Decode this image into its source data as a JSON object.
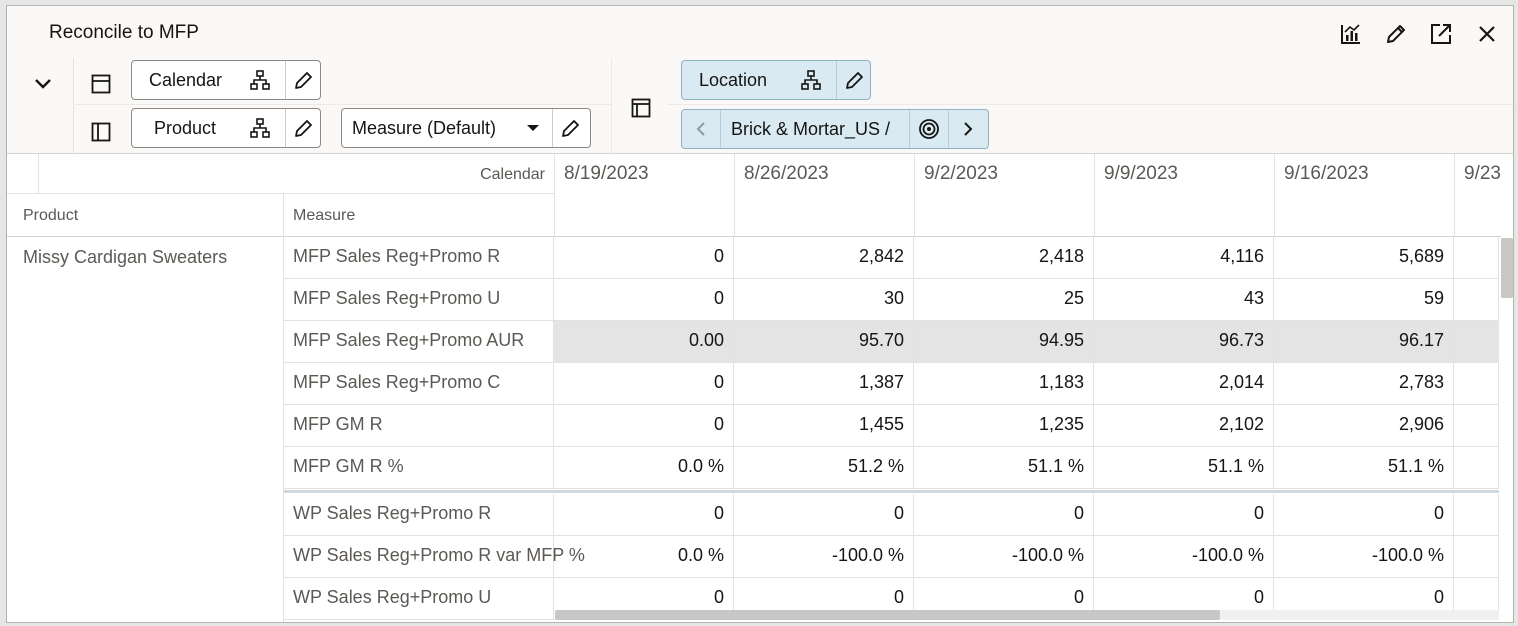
{
  "window": {
    "title": "Reconcile to MFP",
    "icons": [
      "chart-icon",
      "pencil-icon",
      "expand-icon",
      "close-icon"
    ]
  },
  "toolbar": {
    "calendar_label": "Calendar",
    "product_label": "Product",
    "measure_label": "Measure (Default)",
    "location_label": "Location",
    "location_value": "Brick & Mortar_US /"
  },
  "grid": {
    "calendar_header": "Calendar",
    "product_header": "Product",
    "measure_header": "Measure",
    "columns": [
      "8/19/2023",
      "8/26/2023",
      "9/2/2023",
      "9/9/2023",
      "9/16/2023",
      "9/23"
    ],
    "product": "Missy Cardigan Sweaters",
    "rows": [
      {
        "measure": "MFP Sales Reg+Promo R",
        "values": [
          "0",
          "2,842",
          "2,418",
          "4,116",
          "5,689"
        ]
      },
      {
        "measure": "MFP Sales Reg+Promo U",
        "values": [
          "0",
          "30",
          "25",
          "43",
          "59"
        ]
      },
      {
        "measure": "MFP Sales Reg+Promo AUR",
        "values": [
          "0.00",
          "95.70",
          "94.95",
          "96.73",
          "96.17"
        ]
      },
      {
        "measure": "MFP Sales Reg+Promo C",
        "values": [
          "0",
          "1,387",
          "1,183",
          "2,014",
          "2,783"
        ]
      },
      {
        "measure": "MFP GM R",
        "values": [
          "0",
          "1,455",
          "1,235",
          "2,102",
          "2,906"
        ]
      },
      {
        "measure": "MFP GM R %",
        "values": [
          "0.0 %",
          "51.2 %",
          "51.1 %",
          "51.1 %",
          "51.1 %"
        ]
      },
      {
        "measure": "WP Sales Reg+Promo R",
        "values": [
          "0",
          "0",
          "0",
          "0",
          "0"
        ]
      },
      {
        "measure": "WP Sales Reg+Promo R var MFP %",
        "values": [
          "0.0 %",
          "-100.0 %",
          "-100.0 %",
          "-100.0 %",
          "-100.0 %"
        ]
      },
      {
        "measure": "WP Sales Reg+Promo U",
        "values": [
          "0",
          "0",
          "0",
          "0",
          "0"
        ]
      }
    ]
  }
}
